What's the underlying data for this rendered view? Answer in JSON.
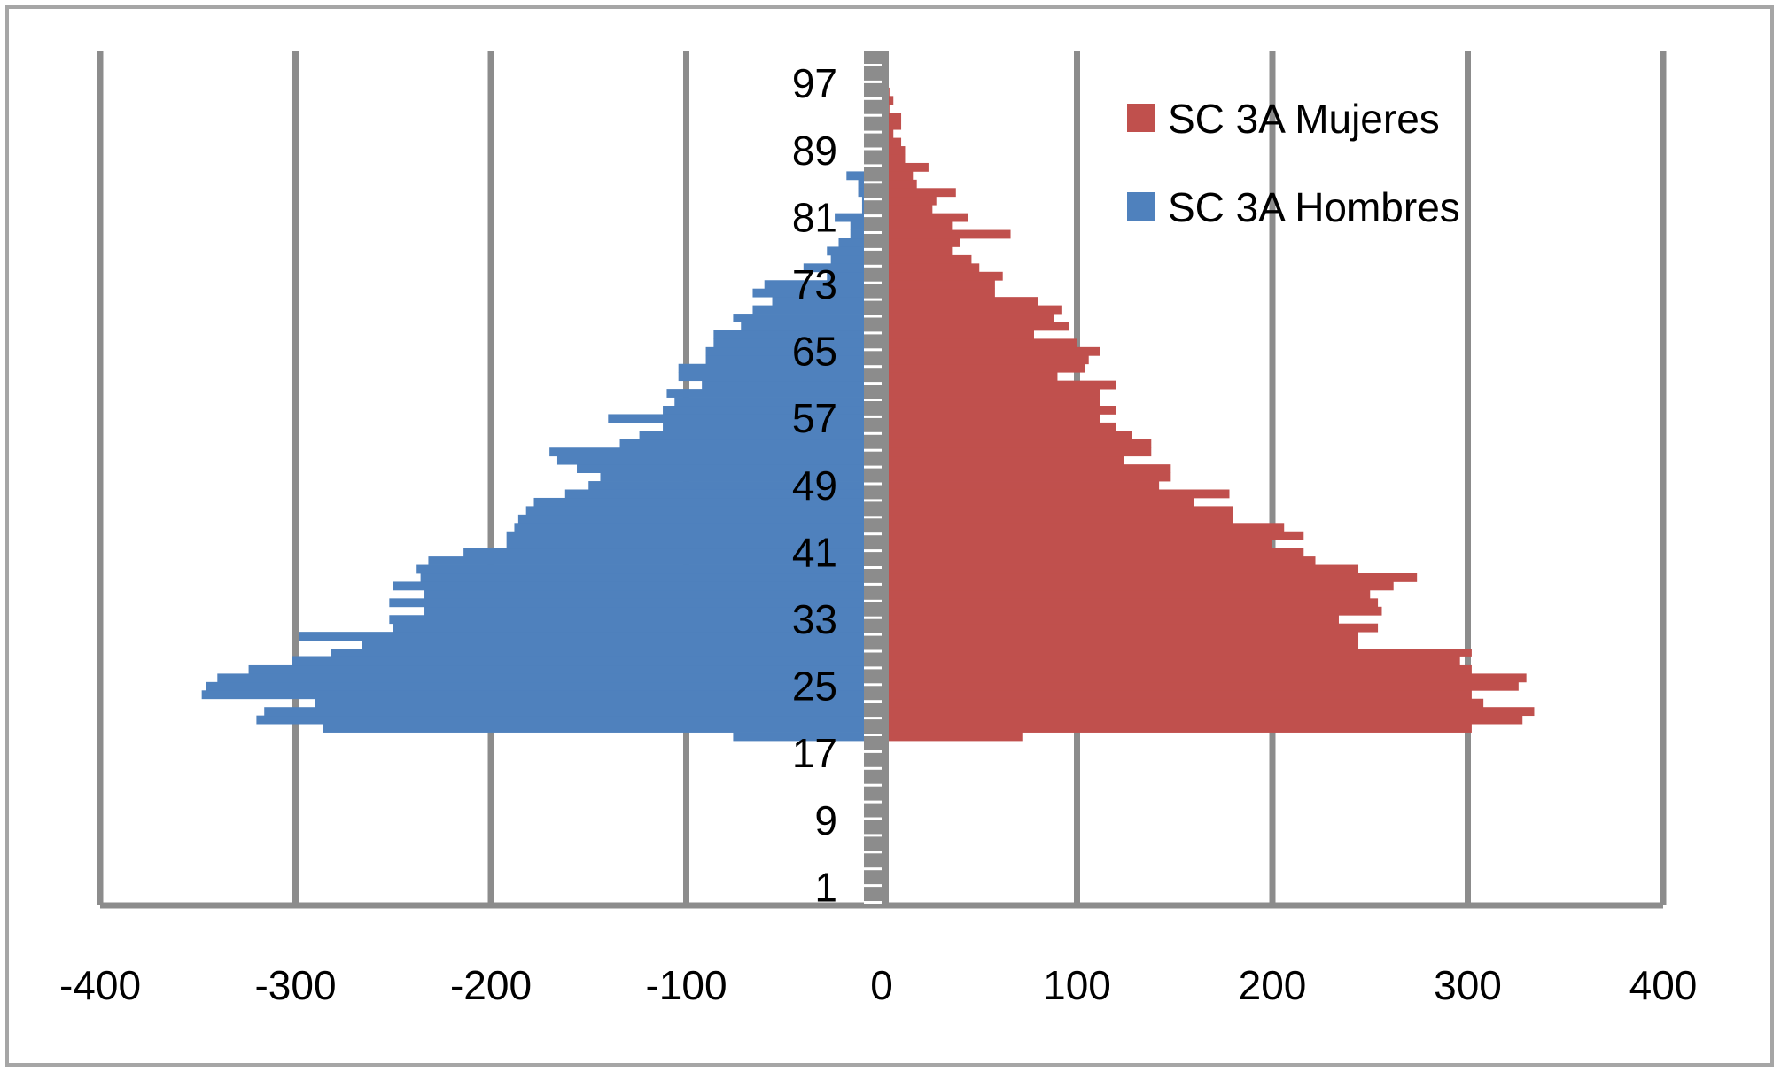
{
  "colors": {
    "mujeres": "#c0504d",
    "hombres": "#4f81bd",
    "grid": "#8c8c8c",
    "axis_band": "#8c8c8c",
    "frame": "#a6a6a6"
  },
  "chart_data": {
    "type": "bar",
    "orientation": "horizontal",
    "title": "",
    "xlabel": "",
    "ylabel": "",
    "xlim": [
      -400,
      400
    ],
    "x_ticks": [
      -400,
      -300,
      -200,
      -100,
      0,
      100,
      200,
      300,
      400
    ],
    "y_range": [
      1,
      99
    ],
    "y_tick_labels": [
      1,
      9,
      17,
      25,
      33,
      41,
      49,
      57,
      65,
      73,
      81,
      89,
      97
    ],
    "grid": true,
    "legend_position": "top-right",
    "series": [
      {
        "name": "SC 3A Mujeres",
        "ages": [
          19,
          20,
          21,
          22,
          23,
          24,
          25,
          26,
          27,
          28,
          29,
          30,
          31,
          32,
          33,
          34,
          35,
          36,
          37,
          38,
          39,
          40,
          41,
          42,
          43,
          44,
          45,
          46,
          47,
          48,
          49,
          50,
          51,
          52,
          53,
          54,
          55,
          56,
          57,
          58,
          59,
          60,
          61,
          62,
          63,
          64,
          65,
          66,
          67,
          68,
          69,
          70,
          71,
          72,
          73,
          74,
          75,
          76,
          77,
          78,
          79,
          80,
          81,
          82,
          83,
          84,
          85,
          86,
          87,
          88,
          89,
          90,
          91,
          92,
          93,
          94,
          95,
          96,
          97,
          98
        ],
        "values": [
          72,
          302,
          328,
          334,
          308,
          302,
          326,
          330,
          302,
          296,
          302,
          244,
          244,
          254,
          234,
          256,
          254,
          250,
          262,
          274,
          244,
          222,
          216,
          200,
          216,
          206,
          180,
          180,
          160,
          178,
          142,
          148,
          148,
          124,
          138,
          138,
          128,
          120,
          112,
          120,
          112,
          112,
          120,
          90,
          104,
          106,
          112,
          100,
          78,
          96,
          88,
          92,
          80,
          58,
          58,
          62,
          50,
          46,
          36,
          40,
          66,
          36,
          44,
          26,
          28,
          38,
          18,
          16,
          24,
          12,
          12,
          10,
          6,
          10,
          10,
          4,
          6,
          4,
          2,
          2
        ]
      },
      {
        "name": "SC 3A Hombres",
        "ages": [
          19,
          20,
          21,
          22,
          23,
          24,
          25,
          26,
          27,
          28,
          29,
          30,
          31,
          32,
          33,
          34,
          35,
          36,
          37,
          38,
          39,
          40,
          41,
          42,
          43,
          44,
          45,
          46,
          47,
          48,
          49,
          50,
          51,
          52,
          53,
          54,
          55,
          56,
          57,
          58,
          59,
          60,
          61,
          62,
          63,
          64,
          65,
          66,
          67,
          68,
          69,
          70,
          71,
          72,
          73,
          74,
          75,
          76,
          77,
          78,
          79,
          80,
          81,
          82,
          83,
          84,
          85,
          86,
          87,
          88,
          89,
          90,
          91,
          92,
          93,
          94,
          95,
          96,
          97,
          98,
          99
        ],
        "values": [
          -76,
          -286,
          -320,
          -316,
          -290,
          -348,
          -346,
          -340,
          -324,
          -302,
          -282,
          -266,
          -298,
          -250,
          -252,
          -234,
          -252,
          -234,
          -250,
          -236,
          -238,
          -232,
          -214,
          -192,
          -192,
          -188,
          -186,
          -182,
          -178,
          -162,
          -150,
          -144,
          -156,
          -166,
          -170,
          -134,
          -124,
          -112,
          -140,
          -112,
          -106,
          -110,
          -92,
          -104,
          -104,
          -90,
          -90,
          -86,
          -86,
          -72,
          -76,
          -66,
          -56,
          -66,
          -60,
          -28,
          -40,
          -26,
          -28,
          -22,
          -16,
          -16,
          -24,
          -10,
          -10,
          -12,
          -12,
          -18,
          -8,
          -4,
          -4,
          -6,
          -4,
          -4,
          -4,
          -2,
          -2,
          -2,
          -2,
          -2,
          -2
        ]
      }
    ]
  }
}
